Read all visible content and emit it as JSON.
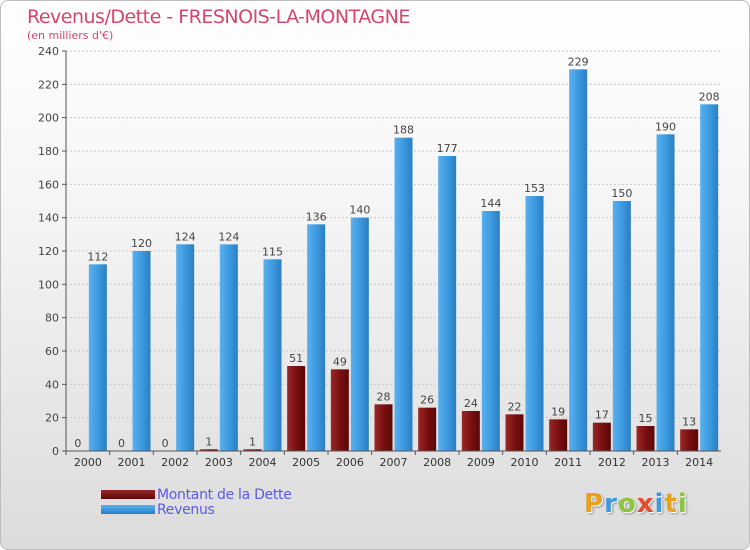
{
  "title": "Revenus/Dette - FRESNOIS-LA-MONTAGNE",
  "subtitle": "(en milliers d'€)",
  "colors": {
    "title": "#d8446a",
    "revenus": "#3d9ae0",
    "dette": "#7a1010",
    "legend_text": "#5a5ae6"
  },
  "legend": [
    {
      "label": "Montant de la Dette",
      "color": "#7a1010"
    },
    {
      "label": "Revenus",
      "color": "#3d9ae0"
    }
  ],
  "logo": {
    "letters": [
      "P",
      "r",
      "o",
      "x",
      "i",
      "t",
      "i"
    ],
    "colors": [
      "#e8a020",
      "#3d9ae0",
      "#8cc63f",
      "#e84a2a",
      "#3d9ae0",
      "#e8a020",
      "#8cc63f"
    ]
  },
  "chart_data": {
    "type": "bar",
    "title": "Revenus/Dette - FRESNOIS-LA-MONTAGNE",
    "ylabel": "(en milliers d'€)",
    "xlabel": "",
    "ylim": [
      0,
      240
    ],
    "yticks": [
      0,
      20,
      40,
      60,
      80,
      100,
      120,
      140,
      160,
      180,
      200,
      220,
      240
    ],
    "grid": "horizontal dashed",
    "categories": [
      "2000",
      "2001",
      "2002",
      "2003",
      "2004",
      "2005",
      "2006",
      "2007",
      "2008",
      "2009",
      "2010",
      "2011",
      "2012",
      "2013",
      "2014"
    ],
    "series": [
      {
        "name": "Montant de la Dette",
        "values": [
          0,
          0,
          0,
          1,
          1,
          51,
          49,
          28,
          26,
          24,
          22,
          19,
          17,
          15,
          13
        ]
      },
      {
        "name": "Revenus",
        "values": [
          112,
          120,
          124,
          124,
          115,
          136,
          140,
          188,
          177,
          144,
          153,
          229,
          150,
          190,
          208
        ]
      }
    ]
  }
}
